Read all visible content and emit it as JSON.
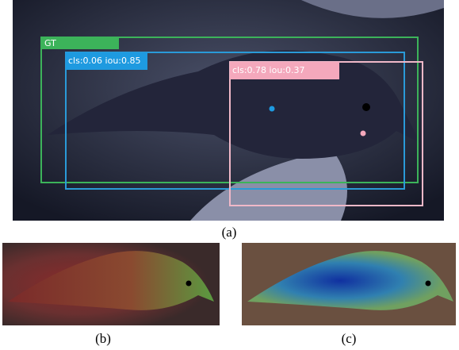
{
  "panels": [
    {
      "caption": "(a)",
      "boxes": [
        {
          "label": "GT"
        },
        {
          "label": "cls:0.06 iou:0.85"
        },
        {
          "label": "cls:0.78 iou:0.37"
        }
      ]
    },
    {
      "caption": "(b)"
    },
    {
      "caption": "(c)"
    }
  ]
}
